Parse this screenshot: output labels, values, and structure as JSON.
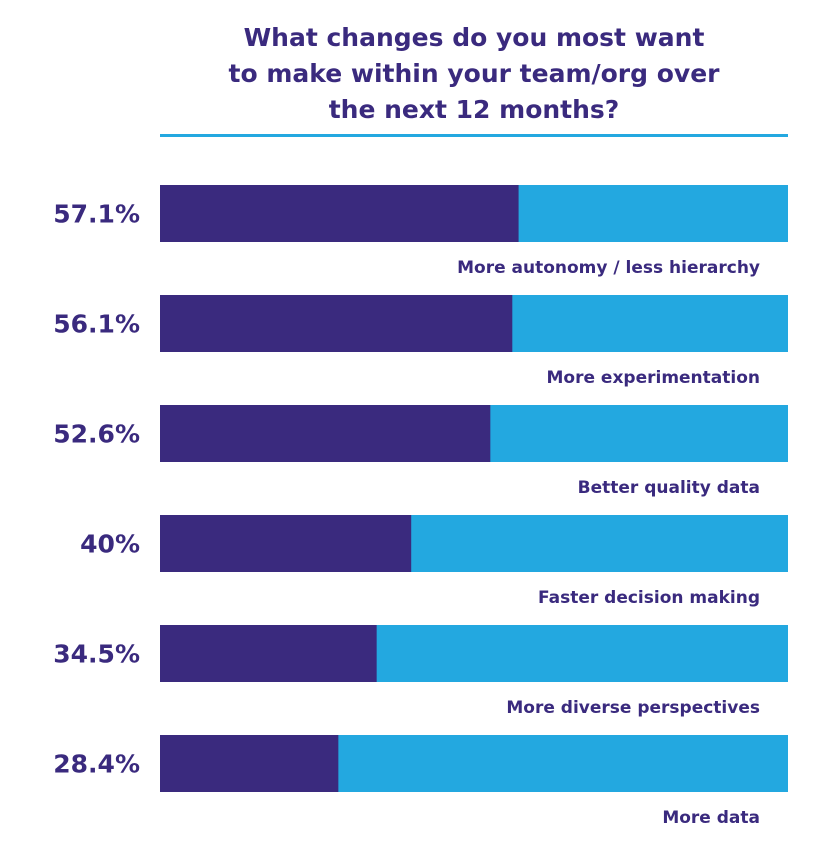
{
  "chart_data": {
    "type": "bar",
    "orientation": "horizontal",
    "title_lines": [
      "What changes do you most want",
      "to make within your team/org over",
      "the next 12 months?"
    ],
    "categories": [
      "More autonomy / less hierarchy",
      "More experimentation",
      "Better quality data",
      "Faster decision making",
      "More diverse perspectives",
      "More data"
    ],
    "values": [
      57.1,
      56.1,
      52.6,
      40,
      34.5,
      28.4
    ],
    "value_labels": [
      "57.1%",
      "56.1%",
      "52.6%",
      "40%",
      "34.5%",
      "28.4%"
    ],
    "xlim": [
      0,
      100
    ],
    "grid": false,
    "legend": "none"
  },
  "colors": {
    "bar_fill": "#3a2a7e",
    "bar_track": "#23a8e0",
    "text": "#3a2a7e",
    "rule": "#23a8e0"
  }
}
